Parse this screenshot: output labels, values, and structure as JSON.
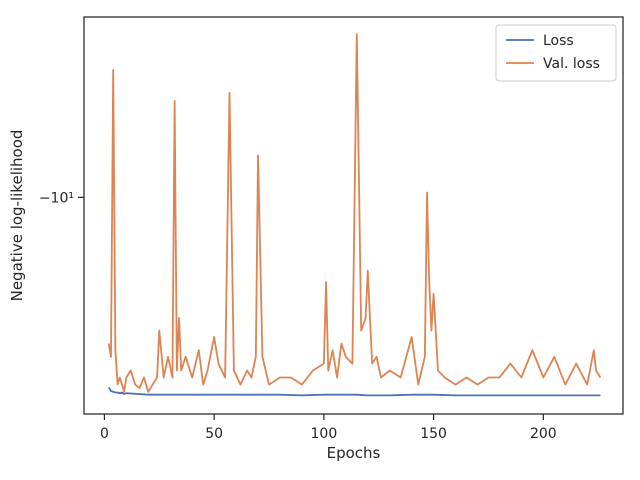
{
  "chart_data": {
    "type": "line",
    "xlabel": "Epochs",
    "ylabel": "Negative log-likelihood",
    "xlim": [
      -9.3,
      236.3
    ],
    "x_ticks": [
      0,
      50,
      100,
      150,
      200
    ],
    "y_scale": "symlog (negative values)",
    "y_ticks": [
      {
        "value": -10,
        "label": "−10¹"
      }
    ],
    "ylim": [
      -6.4,
      -14.5
    ],
    "legend_position": "top-right",
    "grid": false,
    "series": [
      {
        "name": "Loss",
        "color": "#4c72b0",
        "x": [
          2,
          3,
          4,
          5,
          6,
          7,
          8,
          9,
          10,
          15,
          20,
          25,
          30,
          40,
          50,
          60,
          70,
          80,
          90,
          100,
          110,
          115,
          120,
          130,
          140,
          150,
          160,
          170,
          180,
          190,
          200,
          210,
          220,
          226
        ],
        "y": [
          -6.76,
          -6.71,
          -6.7,
          -6.69,
          -6.69,
          -6.68,
          -6.69,
          -6.67,
          -6.68,
          -6.67,
          -6.66,
          -6.66,
          -6.66,
          -6.66,
          -6.66,
          -6.66,
          -6.66,
          -6.66,
          -6.65,
          -6.66,
          -6.66,
          -6.66,
          -6.65,
          -6.65,
          -6.66,
          -6.66,
          -6.65,
          -6.65,
          -6.65,
          -6.65,
          -6.65,
          -6.65,
          -6.65,
          -6.65
        ]
      },
      {
        "name": "Val. loss",
        "color": "#dd8452",
        "x": [
          2,
          3,
          4,
          5,
          6,
          7,
          8,
          9,
          10,
          12,
          14,
          16,
          18,
          20,
          22,
          24,
          25,
          27,
          29,
          31,
          32,
          33,
          34,
          35,
          37,
          40,
          43,
          45,
          47,
          50,
          52,
          55,
          57,
          59,
          62,
          65,
          67,
          69,
          70,
          72,
          75,
          80,
          85,
          90,
          95,
          100,
          101,
          102,
          104,
          106,
          108,
          110,
          113,
          115,
          117,
          119,
          120,
          121,
          122,
          124,
          126,
          130,
          135,
          140,
          143,
          146,
          147,
          148,
          149,
          150,
          152,
          155,
          160,
          165,
          170,
          175,
          180,
          185,
          190,
          195,
          200,
          205,
          210,
          215,
          220,
          223,
          224,
          226
        ],
        "y": [
          -7.4,
          -7.2,
          -13.0,
          -7.3,
          -6.8,
          -6.9,
          -6.8,
          -6.7,
          -6.9,
          -7.0,
          -6.8,
          -6.75,
          -6.9,
          -6.7,
          -6.8,
          -6.9,
          -7.6,
          -6.9,
          -7.2,
          -6.9,
          -12.2,
          -7.0,
          -7.8,
          -7.0,
          -7.2,
          -6.9,
          -7.3,
          -6.8,
          -7.0,
          -7.5,
          -7.1,
          -6.9,
          -12.4,
          -7.0,
          -6.8,
          -7.0,
          -6.9,
          -7.2,
          -10.9,
          -7.2,
          -6.8,
          -6.9,
          -6.9,
          -6.8,
          -7.0,
          -7.1,
          -8.4,
          -7.0,
          -7.3,
          -6.9,
          -7.4,
          -7.2,
          -7.1,
          -14.0,
          -7.6,
          -7.8,
          -8.6,
          -7.8,
          -7.1,
          -7.2,
          -6.9,
          -7.0,
          -6.9,
          -7.5,
          -6.8,
          -7.2,
          -10.1,
          -8.4,
          -7.6,
          -8.2,
          -7.0,
          -6.9,
          -6.8,
          -6.9,
          -6.8,
          -6.9,
          -6.9,
          -7.1,
          -6.9,
          -7.3,
          -6.9,
          -7.2,
          -6.8,
          -7.1,
          -6.8,
          -7.3,
          -7.0,
          -6.9
        ]
      }
    ]
  }
}
